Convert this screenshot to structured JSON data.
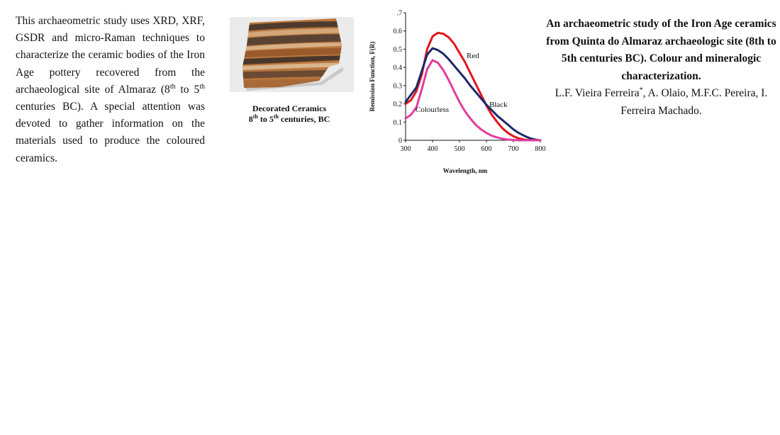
{
  "abstract": {
    "p1": "This archaeometric study uses XRD, XRF, GSDR and micro-Raman techniques to characterize the ceramic bodies of the Iron Age pottery recovered from the archaeological site of Almaraz (8",
    "sup1": "th",
    "p2": " to 5",
    "sup2": "th",
    "p3": " centuries BC). A special attention was devoted to gather information on the materials used to produce the coloured ceramics."
  },
  "figure": {
    "caption_line1": "Decorated Ceramics",
    "caption_8": "8",
    "caption_sup1": "th",
    "caption_to": " to 5",
    "caption_sup2": "th",
    "caption_rest": " centuries, BC"
  },
  "chart_data": {
    "type": "line",
    "xlabel": "Wavelength, nm",
    "ylabel": "Remission Function, F(R)",
    "xlim": [
      300,
      800
    ],
    "ylim": [
      0,
      0.7
    ],
    "xticks": [
      "300",
      "400",
      "500",
      "600",
      "700",
      "800"
    ],
    "yticks": [
      "0",
      "0.1",
      "0.2",
      "0.3",
      "0.4",
      "0.5",
      "0.6",
      ".7"
    ],
    "series": [
      {
        "name": "Red",
        "color": "#e3141b",
        "x": [
          300,
          320,
          340,
          360,
          380,
          400,
          420,
          440,
          460,
          480,
          500,
          520,
          540,
          560,
          580,
          600,
          620,
          640,
          660,
          680,
          700,
          720,
          740,
          760,
          780,
          800
        ],
        "y": [
          0.2,
          0.22,
          0.27,
          0.36,
          0.5,
          0.57,
          0.59,
          0.585,
          0.565,
          0.53,
          0.48,
          0.43,
          0.37,
          0.31,
          0.25,
          0.19,
          0.14,
          0.1,
          0.065,
          0.04,
          0.022,
          0.01,
          0.004,
          0.001,
          0.0,
          0.0
        ]
      },
      {
        "name": "Black",
        "color": "#1c2a6b",
        "x": [
          300,
          320,
          340,
          360,
          380,
          400,
          420,
          440,
          460,
          480,
          500,
          520,
          540,
          560,
          580,
          600,
          620,
          640,
          660,
          680,
          700,
          720,
          740,
          760,
          780,
          800
        ],
        "y": [
          0.21,
          0.25,
          0.29,
          0.38,
          0.47,
          0.505,
          0.495,
          0.475,
          0.445,
          0.41,
          0.375,
          0.34,
          0.3,
          0.265,
          0.23,
          0.195,
          0.165,
          0.135,
          0.11,
          0.085,
          0.06,
          0.04,
          0.025,
          0.012,
          0.004,
          0.0
        ]
      },
      {
        "name": "Colourless",
        "color": "#e23c9c",
        "x": [
          300,
          320,
          340,
          360,
          380,
          400,
          420,
          440,
          460,
          480,
          500,
          520,
          540,
          560,
          580,
          600,
          620,
          640,
          660,
          680,
          700,
          720,
          740,
          760,
          780,
          800
        ],
        "y": [
          0.12,
          0.14,
          0.18,
          0.28,
          0.39,
          0.44,
          0.425,
          0.385,
          0.33,
          0.27,
          0.21,
          0.16,
          0.12,
          0.085,
          0.06,
          0.04,
          0.025,
          0.015,
          0.008,
          0.004,
          0.002,
          0.0,
          0.0,
          0.0,
          0.0,
          0.0
        ]
      }
    ]
  },
  "title_block": {
    "title": "An archaeometric study of the Iron Age ceramics from Quinta do Almaraz archaeologic site (8th to 5th centuries BC). Colour and mineralogic characterization.",
    "authors_a": "L.F. Vieira Ferreira",
    "authors_sup": "*",
    "authors_b": ", A. Olaio, M.F.C. Pereira, I. Ferreira Machado."
  },
  "colors": {
    "photo_bg": "#ebebeb",
    "sherd_base": "#b9753c",
    "sherd_band_dark": "#4e3a2c",
    "sherd_band_light": "#d2a77a"
  },
  "icons": [
    "ceramic-sherd-photo"
  ]
}
